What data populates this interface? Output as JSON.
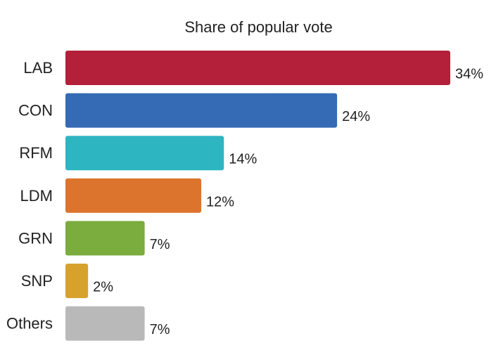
{
  "chart_data": {
    "type": "bar",
    "orientation": "horizontal",
    "title": "Share of popular vote",
    "categories": [
      "LAB",
      "CON",
      "RFM",
      "LDM",
      "GRN",
      "SNP",
      "Others"
    ],
    "values": [
      34,
      24,
      14,
      12,
      7,
      2,
      7
    ],
    "value_labels": [
      "34%",
      "24%",
      "14%",
      "12%",
      "7%",
      "2%",
      "7%"
    ],
    "colors": [
      "#b41f3a",
      "#346bb4",
      "#2eb5c2",
      "#dc742e",
      "#7aac3e",
      "#d7a22c",
      "#b9b9b9"
    ],
    "xlim": [
      0,
      34
    ],
    "grid": false,
    "legend": "none",
    "xlabel": "",
    "ylabel": ""
  }
}
